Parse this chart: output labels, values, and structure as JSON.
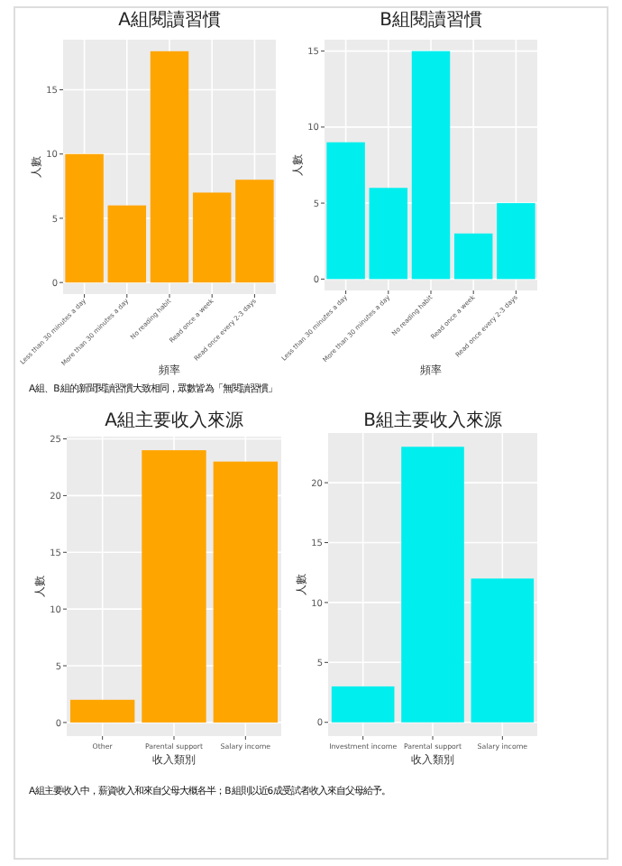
{
  "chart_data": [
    {
      "type": "bar",
      "title": "A組閱讀習慣",
      "xlabel": "頻率",
      "ylabel": "人數",
      "categories": [
        "Less than 30 minutes a day",
        "More than 30 minutes a day",
        "No reading habit",
        "Read once a week",
        "Read once every 2-3 days"
      ],
      "values": [
        10,
        6,
        18,
        7,
        8
      ],
      "color": "#ffa500",
      "ylim": [
        -0.9,
        18.9
      ],
      "yticks": [
        0,
        5,
        10,
        15
      ],
      "grid": true,
      "annotations": [
        "A組、B組的新聞閱讀習慣大致相同，眾數皆為「無閱讀習慣」"
      ]
    },
    {
      "type": "bar",
      "title": "B組閱讀習慣",
      "xlabel": "頻率",
      "ylabel": "人數",
      "categories": [
        "Less than 30 minutes a day",
        "More than 30 minutes a day",
        "No reading habit",
        "Read once a week",
        "Read once every 2-3 days"
      ],
      "values": [
        9,
        6,
        15,
        3,
        5
      ],
      "color": "#00eeee",
      "ylim": [
        -0.75,
        15.75
      ],
      "yticks": [
        0,
        5,
        10,
        15
      ],
      "grid": true
    },
    {
      "type": "bar",
      "title": "A組主要收入來源",
      "xlabel": "收入類別",
      "ylabel": "人數",
      "categories": [
        "Other",
        "Parental support",
        "Salary income"
      ],
      "values": [
        2,
        24,
        23
      ],
      "color": "#ffa500",
      "ylim": [
        -1.2,
        25.2
      ],
      "yticks": [
        0,
        5,
        10,
        15,
        20,
        25
      ],
      "grid": true,
      "annotations": [
        "A組主要收入中，薪資收入和來自父母大概各半；B組則以近6成受試者收入來自父母給予。"
      ]
    },
    {
      "type": "bar",
      "title": "B組主要收入來源",
      "xlabel": "收入類別",
      "ylabel": "人數",
      "categories": [
        "Investment income",
        "Parental support",
        "Salary income"
      ],
      "values": [
        3,
        23,
        12
      ],
      "color": "#00eeee",
      "ylim": [
        -1.15,
        24.15
      ],
      "yticks": [
        0,
        5,
        10,
        15,
        20
      ],
      "grid": true
    }
  ]
}
